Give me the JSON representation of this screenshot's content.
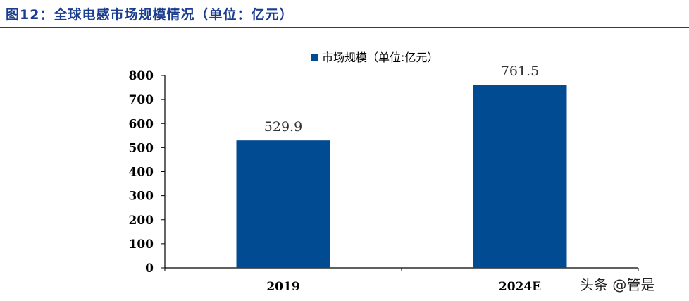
{
  "title": "图12：全球电感市场规模情况（单位：亿元）",
  "watermark": "头条 @管是",
  "colors": {
    "title": "#1a3d8f",
    "bar": "#004b91"
  },
  "chart_data": {
    "type": "bar",
    "categories": [
      "2019",
      "2024E"
    ],
    "series": [
      {
        "name": "市场规模（单位:亿元）",
        "values": [
          529.9,
          761.5
        ]
      }
    ],
    "data_labels": [
      "529.9",
      "761.5"
    ],
    "ylim": [
      0,
      800
    ],
    "yticks": [
      0,
      100,
      200,
      300,
      400,
      500,
      600,
      700,
      800
    ],
    "grid": false,
    "legend": "top-center"
  }
}
